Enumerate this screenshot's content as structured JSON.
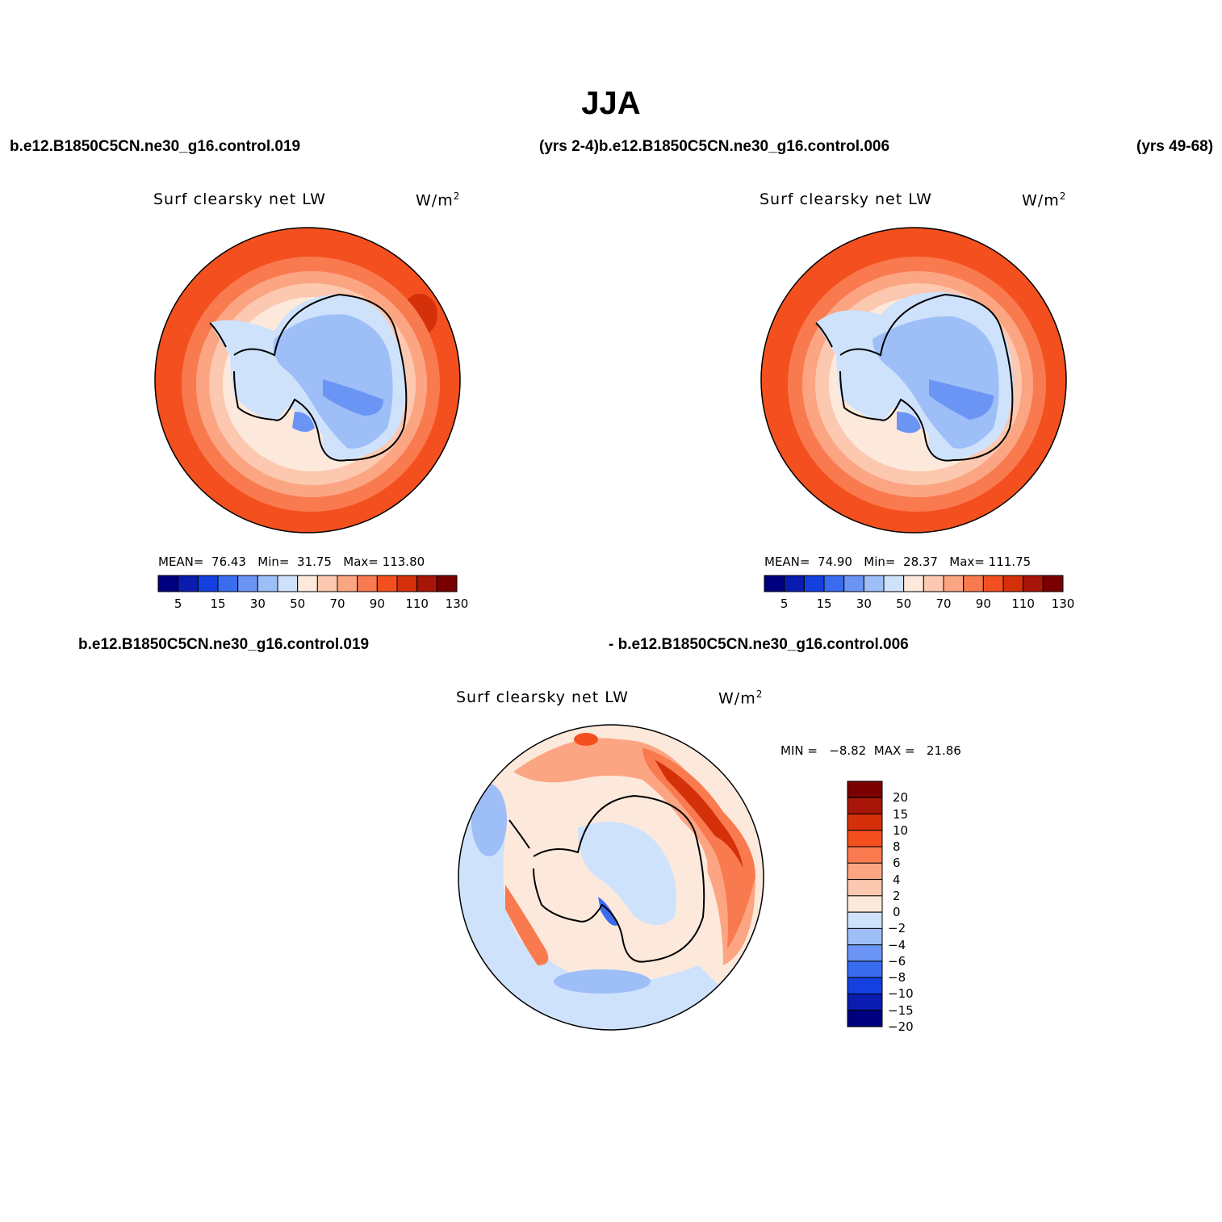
{
  "title": "JJA",
  "headers": {
    "top_left": "b.e12.B1850C5CN.ne30_g16.control.019",
    "top_mid": "(yrs 2-4)b.e12.B1850C5CN.ne30_g16.control.006",
    "top_right": "(yrs 49-68)",
    "bottom_left": "b.e12.B1850C5CN.ne30_g16.control.019",
    "bottom_right": "- b.e12.B1850C5CN.ne30_g16.control.006"
  },
  "panels": [
    {
      "variable": "Surf clearsky net LW",
      "units": "W/m",
      "units_sup": "2",
      "stats": {
        "mean_label": "MEAN=",
        "mean": "76.43",
        "min_label": "Min=",
        "min": "31.75",
        "max_label": "Max=",
        "max": "113.80"
      },
      "colorbar": {
        "colors": [
          "#00007f",
          "#0a1cb0",
          "#1440e0",
          "#3a6cf0",
          "#6b95f5",
          "#9ebef8",
          "#cfe2fb",
          "#fde9dc",
          "#fcc8b0",
          "#fca583",
          "#fa7a4f",
          "#f4501f",
          "#d4300a",
          "#a8160a",
          "#7a0000"
        ],
        "labels": [
          "5",
          "15",
          "30",
          "50",
          "70",
          "90",
          "110",
          "130"
        ]
      }
    },
    {
      "variable": "Surf clearsky net LW",
      "units": "W/m",
      "units_sup": "2",
      "stats": {
        "mean_label": "MEAN=",
        "mean": "74.90",
        "min_label": "Min=",
        "min": "28.37",
        "max_label": "Max=",
        "max": "111.75"
      },
      "colorbar": {
        "colors": [
          "#00007f",
          "#0a1cb0",
          "#1440e0",
          "#3a6cf0",
          "#6b95f5",
          "#9ebef8",
          "#cfe2fb",
          "#fde9dc",
          "#fcc8b0",
          "#fca583",
          "#fa7a4f",
          "#f4501f",
          "#d4300a",
          "#a8160a",
          "#7a0000"
        ],
        "labels": [
          "5",
          "15",
          "30",
          "50",
          "70",
          "90",
          "110",
          "130"
        ]
      }
    },
    {
      "variable": "Surf clearsky net LW",
      "units": "W/m",
      "units_sup": "2",
      "stats": {
        "min_label": "MIN =",
        "min": "−8.82",
        "max_label": "MAX =",
        "max": "21.86"
      },
      "colorbar": {
        "colors": [
          "#00007f",
          "#0a1cb0",
          "#1440e0",
          "#3a6cf0",
          "#6b95f5",
          "#9ebef8",
          "#cfe2fb",
          "#fde9dc",
          "#fcc8b0",
          "#fca583",
          "#fa7a4f",
          "#f4501f",
          "#d4300a",
          "#a8160a",
          "#7a0000"
        ],
        "labels": [
          "20",
          "15",
          "10",
          "8",
          "6",
          "4",
          "2",
          "0",
          "−2",
          "−4",
          "−6",
          "−8",
          "−10",
          "−15",
          "−20"
        ]
      }
    }
  ]
}
